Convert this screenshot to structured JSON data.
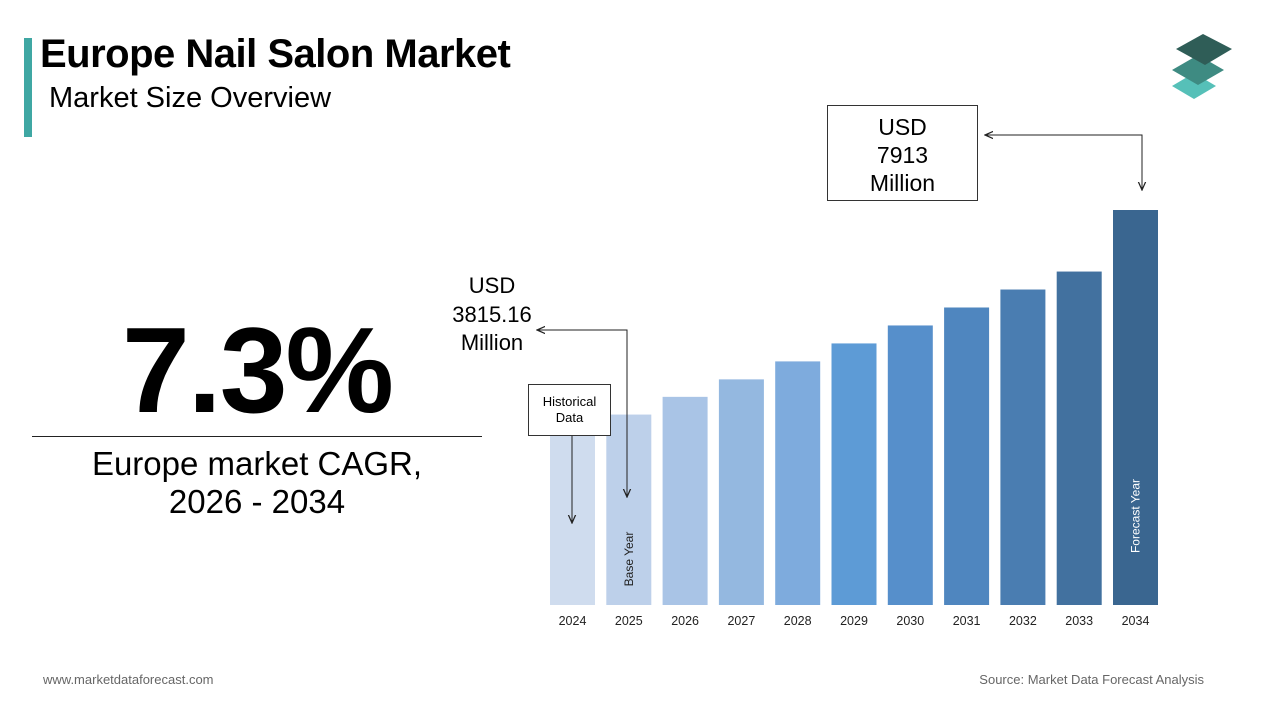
{
  "header": {
    "title": "Europe Nail Salon Market",
    "subtitle": "Market Size Overview"
  },
  "kpi": {
    "cagr_value": "7.3%",
    "cagr_label_line1": "Europe market CAGR,",
    "cagr_label_line2": "2026 - 2034"
  },
  "callouts": {
    "end_value": {
      "line1": "USD",
      "line2": "7913",
      "line3": "Million"
    },
    "base_value": {
      "line1": "USD",
      "line2": "3815.16",
      "line3": "Million"
    },
    "historical": {
      "line1": "Historical",
      "line2": "Data"
    }
  },
  "footer": {
    "website": "www.marketdataforecast.com",
    "source": "Source: Market Data Forecast Analysis"
  },
  "colors": {
    "accent": "#3fa7a3",
    "logo_top": "#2f5d57",
    "logo_mid": "#3e8b82",
    "logo_bottom": "#56c0b8"
  },
  "chart_data": {
    "type": "bar",
    "categories": [
      "2024",
      "2025",
      "2026",
      "2027",
      "2028",
      "2029",
      "2030",
      "2031",
      "2032",
      "2033",
      "2034"
    ],
    "values": [
      3450,
      3815.16,
      4170,
      4520,
      4880,
      5240,
      5600,
      5960,
      6320,
      6680,
      7913
    ],
    "bar_colors": [
      "#cfdcee",
      "#bdd0ea",
      "#a9c4e6",
      "#94b8e0",
      "#7eabdd",
      "#5d9bd6",
      "#568fcb",
      "#4f86bf",
      "#4a7db1",
      "#42719f",
      "#3a6690"
    ],
    "bar_labels": {
      "2025": "Base Year",
      "2034": "Forecast Year"
    },
    "ylim": [
      0,
      7913
    ],
    "grid": false
  }
}
